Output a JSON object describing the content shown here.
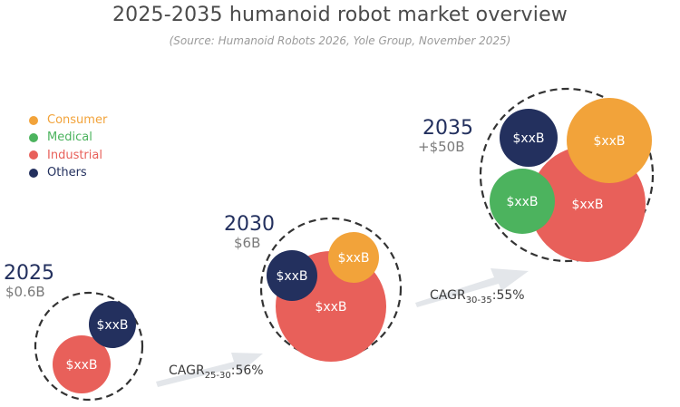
{
  "chart_data": {
    "type": "bubble",
    "title": "2025-2035 humanoid robot market overview",
    "subtitle": "(Source: Humanoid Robots 2026, Yole Group, November 2025)",
    "legend": {
      "placement": "left",
      "entries": [
        {
          "name": "Consumer",
          "color": "#f2a33a"
        },
        {
          "name": "Medical",
          "color": "#4cb35e"
        },
        {
          "name": "Industrial",
          "color": "#e8605a"
        },
        {
          "name": "Others",
          "color": "#23305e"
        }
      ]
    },
    "years": [
      {
        "year": "2025",
        "total": "$0.6B",
        "segments": [
          {
            "segment": "Industrial",
            "label": "$xxB"
          },
          {
            "segment": "Others",
            "label": "$xxB"
          }
        ]
      },
      {
        "year": "2030",
        "total": "$6B",
        "segments": [
          {
            "segment": "Industrial",
            "label": "$xxB"
          },
          {
            "segment": "Others",
            "label": "$xxB"
          },
          {
            "segment": "Consumer",
            "label": "$xxB"
          }
        ]
      },
      {
        "year": "2035",
        "total": "+$50B",
        "segments": [
          {
            "segment": "Industrial",
            "label": "$xxB"
          },
          {
            "segment": "Consumer",
            "label": "$xxB"
          },
          {
            "segment": "Others",
            "label": "$xxB"
          },
          {
            "segment": "Medical",
            "label": "$xxB"
          }
        ]
      }
    ],
    "cagr": [
      {
        "prefix": "CAGR",
        "period": "25-30",
        "value": ":56%"
      },
      {
        "prefix": "CAGR",
        "period": "30-35",
        "value": ":55%"
      }
    ],
    "colors": {
      "year_label": "#23305e",
      "total_label": "#7a7a7a",
      "arrow": "#e3e6ea",
      "dashed_circle": "#333333",
      "legend_text": {
        "Consumer": "#f2a33a",
        "Medical": "#4cb35e",
        "Industrial": "#e8605a",
        "Others": "#23305e"
      }
    }
  }
}
